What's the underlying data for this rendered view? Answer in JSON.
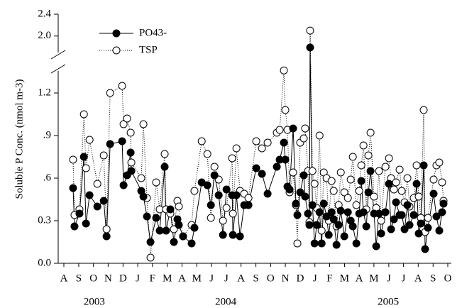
{
  "chart_data": {
    "type": "line",
    "y_label": "Soluble P Conc. (nmol m-3)",
    "x": [
      2003.635,
      2003.643,
      2003.671,
      2003.696,
      2003.708,
      2003.728,
      2003.772,
      2003.808,
      2003.824,
      2003.844,
      2003.912,
      2003.92,
      2003.94,
      2003.96,
      2003.964,
      2004.02,
      2004.032,
      2004.052,
      2004.072,
      2004.104,
      2004.124,
      2004.152,
      2004.16,
      2004.184,
      2004.204,
      2004.224,
      2004.232,
      2004.256,
      2004.304,
      2004.32,
      2004.361,
      2004.393,
      2004.413,
      2004.433,
      2004.457,
      2004.481,
      2004.501,
      2004.533,
      2004.537,
      2004.557,
      2004.577,
      2004.601,
      2004.625,
      2004.669,
      2004.701,
      2004.733,
      2004.785,
      2004.801,
      2004.825,
      2004.833,
      2004.845,
      2004.857,
      2004.877,
      2004.893,
      2004.901,
      2004.917,
      2004.937,
      2004.945,
      2004.961,
      2004.969,
      2004.973,
      2004.986,
      2004.998,
      2005.01,
      2005.026,
      2005.038,
      2005.05,
      2005.066,
      2005.078,
      2005.094,
      2005.106,
      2005.122,
      2005.134,
      2005.146,
      2005.166,
      2005.186,
      2005.202,
      2005.214,
      2005.234,
      2005.25,
      2005.262,
      2005.274,
      2005.29,
      2005.302,
      2005.314,
      2005.334,
      2005.346,
      2005.362,
      2005.374,
      2005.398,
      2005.418,
      2005.43,
      2005.446,
      2005.458,
      2005.478,
      2005.49,
      2005.506,
      2005.522,
      2005.534,
      2005.558,
      2005.574,
      2005.586,
      2005.598,
      2005.614,
      2005.622,
      2005.638,
      2005.67,
      2005.686,
      2005.702,
      2005.718,
      2005.726
    ],
    "series": [
      {
        "name": "PO43-",
        "color": "#000000",
        "marker": "filled",
        "line": "solid",
        "values": [
          0.53,
          0.26,
          0.35,
          0.75,
          0.28,
          0.48,
          0.4,
          0.44,
          0.19,
          0.84,
          0.86,
          0.55,
          0.62,
          0.78,
          0.65,
          0.51,
          0.47,
          0.33,
          0.15,
          0.32,
          0.23,
          0.68,
          0.23,
          0.38,
          0.15,
          0.31,
          0.27,
          0.19,
          0.14,
          0.25,
          0.57,
          0.55,
          0.41,
          0.62,
          0.48,
          0.2,
          0.52,
          0.48,
          0.2,
          0.48,
          0.19,
          0.41,
          0.41,
          0.67,
          0.63,
          0.49,
          0.68,
          0.73,
          0.85,
          0.73,
          0.54,
          0.52,
          0.95,
          0.42,
          0.34,
          0.5,
          0.62,
          0.47,
          0.35,
          0.27,
          1.79,
          0.41,
          0.14,
          0.27,
          0.36,
          0.14,
          0.42,
          0.33,
          0.2,
          0.36,
          0.31,
          0.13,
          0.27,
          0.37,
          0.19,
          0.36,
          0.3,
          0.26,
          0.14,
          0.35,
          0.58,
          0.36,
          0.26,
          0.5,
          0.65,
          0.35,
          0.12,
          0.35,
          0.21,
          0.36,
          0.56,
          0.24,
          0.31,
          0.43,
          0.34,
          0.34,
          0.24,
          0.41,
          0.27,
          0.34,
          0.56,
          0.21,
          0.28,
          0.69,
          0.1,
          0.25,
          0.49,
          0.33,
          0.23,
          0.36,
          0.42
        ]
      },
      {
        "name": "TSP",
        "color": "#000000",
        "marker": "open",
        "line": "dotted",
        "values": [
          0.73,
          0.34,
          0.38,
          1.05,
          0.67,
          0.87,
          0.56,
          0.76,
          0.24,
          1.2,
          1.25,
          0.98,
          1.02,
          0.92,
          0.71,
          0.6,
          0.98,
          0.46,
          0.04,
          0.57,
          0.38,
          0.77,
          0.38,
          0.35,
          0.24,
          0.44,
          0.4,
          0.19,
          0.27,
          0.51,
          0.86,
          0.77,
          0.32,
          0.68,
          0.59,
          0.3,
          0.39,
          0.74,
          0.35,
          0.81,
          0.51,
          0.49,
          0.46,
          0.86,
          0.81,
          0.85,
          0.92,
          0.94,
          1.37,
          1.08,
          0.94,
          0.5,
          0.64,
          0.41,
          0.14,
          0.85,
          0.88,
          0.95,
          0.65,
          0.29,
          2.1,
          0.65,
          0.56,
          0.39,
          0.9,
          0.23,
          0.64,
          0.6,
          0.3,
          0.58,
          0.51,
          0.26,
          0.41,
          0.64,
          0.5,
          0.46,
          0.59,
          0.75,
          0.41,
          0.51,
          0.69,
          0.83,
          0.38,
          0.76,
          0.92,
          0.47,
          0.39,
          0.65,
          0.3,
          0.68,
          0.74,
          0.6,
          0.52,
          0.57,
          0.66,
          0.51,
          0.43,
          0.6,
          0.4,
          0.46,
          0.69,
          0.47,
          0.32,
          1.08,
          0.22,
          0.32,
          0.59,
          0.69,
          0.71,
          0.57,
          0.44
        ]
      }
    ],
    "xlim": [
      2003.551,
      2005.77
    ],
    "xticks": [
      {
        "value": 2003.583,
        "label": "A"
      },
      {
        "value": 2003.667,
        "label": "S"
      },
      {
        "value": 2003.75,
        "label": "O"
      },
      {
        "value": 2003.833,
        "label": "N"
      },
      {
        "value": 2003.917,
        "label": "D"
      },
      {
        "value": 2004,
        "label": "J"
      },
      {
        "value": 2004.083,
        "label": "F"
      },
      {
        "value": 2004.167,
        "label": "M"
      },
      {
        "value": 2004.25,
        "label": "A"
      },
      {
        "value": 2004.333,
        "label": "M"
      },
      {
        "value": 2004.417,
        "label": "J"
      },
      {
        "value": 2004.5,
        "label": "J"
      },
      {
        "value": 2004.583,
        "label": "A"
      },
      {
        "value": 2004.667,
        "label": "S"
      },
      {
        "value": 2004.75,
        "label": "O"
      },
      {
        "value": 2004.833,
        "label": "N"
      },
      {
        "value": 2004.917,
        "label": "D"
      },
      {
        "value": 2005,
        "label": "J"
      },
      {
        "value": 2005.083,
        "label": "F"
      },
      {
        "value": 2005.167,
        "label": "M"
      },
      {
        "value": 2005.25,
        "label": "A"
      },
      {
        "value": 2005.333,
        "label": "M"
      },
      {
        "value": 2005.417,
        "label": "J"
      },
      {
        "value": 2005.5,
        "label": "J"
      },
      {
        "value": 2005.583,
        "label": "A"
      },
      {
        "value": 2005.667,
        "label": "S"
      },
      {
        "value": 2005.75,
        "label": "O"
      }
    ],
    "year_labels": [
      {
        "value": 2003.755,
        "label": "2003"
      },
      {
        "value": 2004.497,
        "label": "2004"
      },
      {
        "value": 2005.414,
        "label": "2005"
      }
    ],
    "ylim": [
      0,
      2.4
    ],
    "axis_break": [
      1.32,
      1.75
    ],
    "yticks": [
      {
        "value": 0,
        "label": "0.0"
      },
      0.3,
      {
        "value": 0.6,
        "label": ".6"
      },
      {
        "value": 0.9,
        "label": ".9"
      },
      1.2,
      {
        "value": 2,
        "label": "2.0"
      },
      2.4
    ],
    "legend": "upper left"
  }
}
